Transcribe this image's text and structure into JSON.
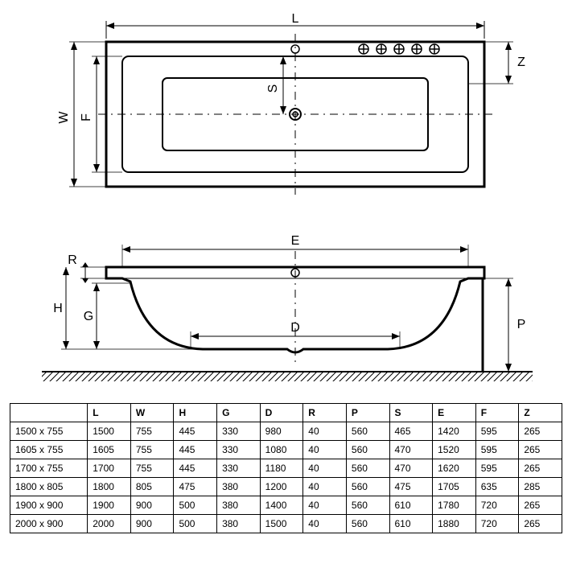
{
  "diagram": {
    "line_color": "#000000",
    "line_width": 2,
    "centerline_dash": "10 6 2 6",
    "ground_hatch_color": "#000000",
    "background": "#ffffff",
    "label_font_size": 16,
    "labels": {
      "L": "L",
      "W": "W",
      "F": "F",
      "S": "S",
      "Z": "Z",
      "E": "E",
      "R": "R",
      "H": "H",
      "G": "G",
      "D": "D",
      "P": "P"
    }
  },
  "table": {
    "columns": [
      "",
      "L",
      "W",
      "H",
      "G",
      "D",
      "R",
      "P",
      "S",
      "E",
      "F",
      "Z"
    ],
    "rows": [
      [
        "1500 x 755",
        "1500",
        "755",
        "445",
        "330",
        "980",
        "40",
        "560",
        "465",
        "1420",
        "595",
        "265"
      ],
      [
        "1605 x 755",
        "1605",
        "755",
        "445",
        "330",
        "1080",
        "40",
        "560",
        "470",
        "1520",
        "595",
        "265"
      ],
      [
        "1700 x 755",
        "1700",
        "755",
        "445",
        "330",
        "1180",
        "40",
        "560",
        "470",
        "1620",
        "595",
        "265"
      ],
      [
        "1800 x 805",
        "1800",
        "805",
        "475",
        "380",
        "1200",
        "40",
        "560",
        "475",
        "1705",
        "635",
        "285"
      ],
      [
        "1900 x 900",
        "1900",
        "900",
        "500",
        "380",
        "1400",
        "40",
        "560",
        "610",
        "1780",
        "720",
        "265"
      ],
      [
        "2000 x 900",
        "2000",
        "900",
        "500",
        "380",
        "1500",
        "40",
        "560",
        "610",
        "1880",
        "720",
        "265"
      ]
    ],
    "col_widths_pct": [
      14,
      7.8,
      7.8,
      7.8,
      7.8,
      7.8,
      7.8,
      7.8,
      7.8,
      7.8,
      7.8,
      7.8
    ]
  }
}
